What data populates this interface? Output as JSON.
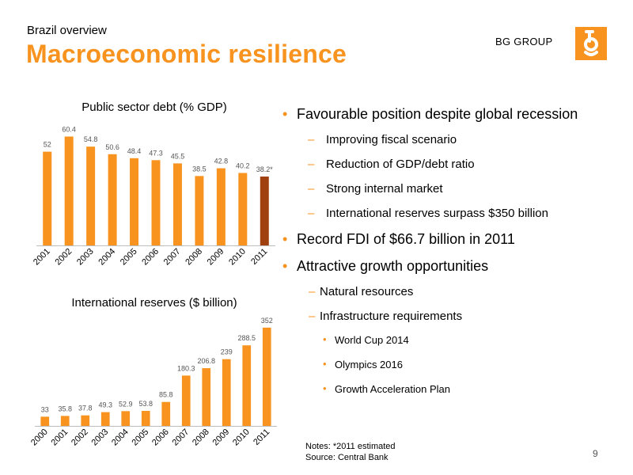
{
  "header": {
    "subtitle": "Brazil overview",
    "title": "Macroeconomic resilience",
    "logo_text": "BG GROUP"
  },
  "colors": {
    "accent": "#f7931e",
    "bar": "#f7931e",
    "bar_highlight": "#a0400f"
  },
  "chart_data": [
    {
      "type": "bar",
      "title": "Public sector debt (% GDP)",
      "categories": [
        "2001",
        "2002",
        "2003",
        "2004",
        "2005",
        "2006",
        "2007",
        "2008",
        "2009",
        "2010",
        "2011"
      ],
      "values": [
        52,
        60.4,
        54.8,
        50.6,
        48.4,
        47.3,
        45.5,
        38.5,
        42.8,
        40.2,
        38.2
      ],
      "value_labels": [
        "52",
        "60.4",
        "54.8",
        "50.6",
        "48.4",
        "47.3",
        "45.5",
        "38.5",
        "42.8",
        "40.2",
        "38.2*"
      ],
      "highlight_index": 10,
      "ylim": [
        0,
        65
      ],
      "grid": false
    },
    {
      "type": "bar",
      "title": "International reserves ($ billion)",
      "categories": [
        "2000",
        "2001",
        "2002",
        "2003",
        "2004",
        "2005",
        "2006",
        "2007",
        "2008",
        "2009",
        "2010",
        "2011"
      ],
      "values": [
        33,
        35.8,
        37.8,
        49.3,
        52.9,
        53.8,
        85.8,
        180.3,
        206.8,
        239,
        288.5,
        352
      ],
      "value_labels": [
        "33",
        "35.8",
        "37.8",
        "49.3",
        "52.9",
        "53.8",
        "85.8",
        "180.3",
        "206.8",
        "239",
        "288.5",
        "352"
      ],
      "ylim": [
        0,
        360
      ],
      "grid": false
    }
  ],
  "bullets": {
    "b1": "Favourable position despite global recession",
    "b1_1": "Improving fiscal scenario",
    "b1_2": "Reduction of GDP/debt ratio",
    "b1_3": "Strong internal market",
    "b1_4": "International reserves surpass $350 billion",
    "b2": "Record FDI of $66.7 billion in 2011",
    "b3": "Attractive growth opportunities",
    "b3_1": "Natural resources",
    "b3_2": "Infrastructure requirements",
    "b3_2_1": "World Cup 2014",
    "b3_2_2": "Olympics 2016",
    "b3_2_3": "Growth Acceleration Plan"
  },
  "footer": {
    "notes": "Notes: *2011 estimated",
    "source": "Source: Central Bank",
    "page_number": "9"
  }
}
